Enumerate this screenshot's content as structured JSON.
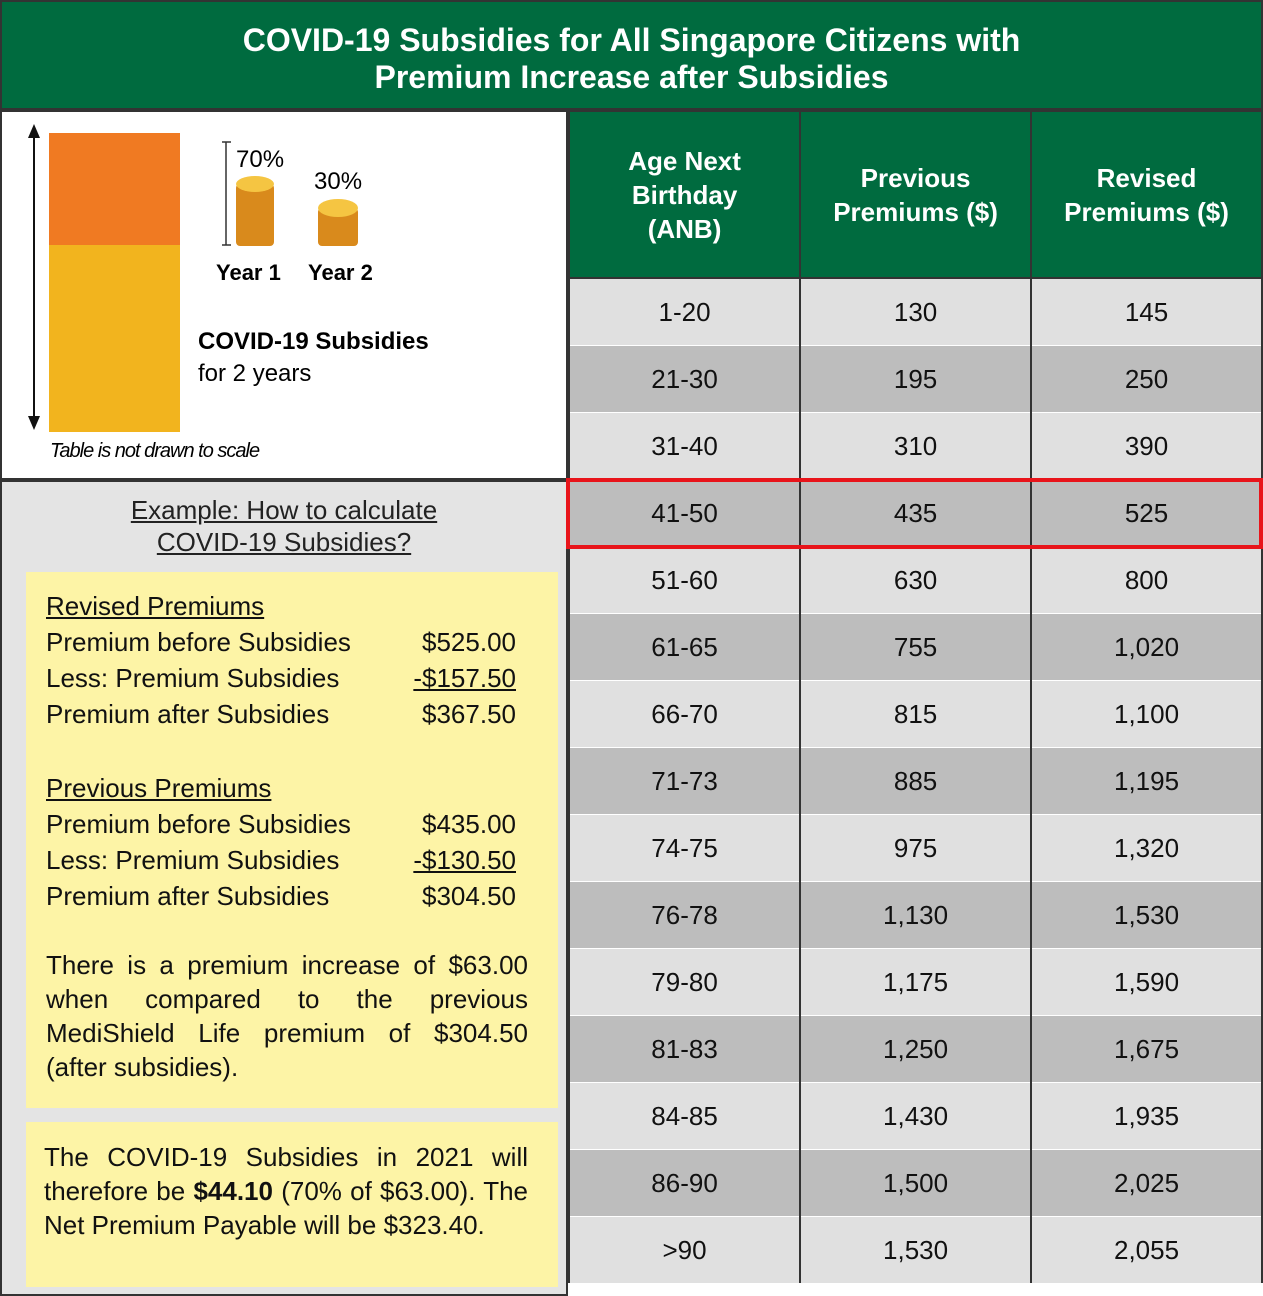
{
  "header": {
    "title_lines": [
      "COVID-19 Subsidies for All Singapore Citizens with",
      "Premium Increase after Subsidies"
    ]
  },
  "legend": {
    "year1_pct": "70%",
    "year2_pct": "30%",
    "year1": "Year 1",
    "year2": "Year 2",
    "label_bold": "COVID-19 Subsidies",
    "label": "for 2 years",
    "note": "Table is not drawn to scale"
  },
  "example": {
    "title_lines": [
      "Example: How to calculate",
      "COVID-19 Subsidies?"
    ],
    "revised": {
      "heading": "Revised Premiums",
      "rows": [
        [
          "Premium before Subsidies",
          "$525.00"
        ],
        [
          "Less: Premium Subsidies",
          "-$157.50"
        ],
        [
          "Premium after Subsidies",
          "$367.50"
        ]
      ]
    },
    "previous": {
      "heading": "Previous Premiums",
      "rows": [
        [
          "Premium before Subsidies",
          "$435.00"
        ],
        [
          "Less: Premium Subsidies",
          "-$130.50"
        ],
        [
          "Premium after Subsidies",
          "$304.50"
        ]
      ]
    },
    "increase_text": "There is a premium increase of $63.00 when compared to the previous MediShield Life premium of $304.50 (after subsidies).",
    "conclusion": [
      "The COVID-19 Subsidies in 2021 will therefore be ",
      "$44.10",
      " (70% of $63.00). The Net Premium Payable will be $323.40."
    ]
  },
  "table": {
    "columns": [
      [
        "Age Next",
        "Birthday",
        "(ANB)"
      ],
      [
        "Previous",
        "Premiums ($)"
      ],
      [
        "Revised",
        "Premiums ($)"
      ]
    ],
    "rows": [
      [
        "1-20",
        "130",
        "145"
      ],
      [
        "21-30",
        "195",
        "250"
      ],
      [
        "31-40",
        "310",
        "390"
      ],
      [
        "41-50",
        "435",
        "525"
      ],
      [
        "51-60",
        "630",
        "800"
      ],
      [
        "61-65",
        "755",
        "1,020"
      ],
      [
        "66-70",
        "815",
        "1,100"
      ],
      [
        "71-73",
        "885",
        "1,195"
      ],
      [
        "74-75",
        "975",
        "1,320"
      ],
      [
        "76-78",
        "1,130",
        "1,530"
      ],
      [
        "79-80",
        "1,175",
        "1,590"
      ],
      [
        "81-83",
        "1,250",
        "1,675"
      ],
      [
        "84-85",
        "1,430",
        "1,935"
      ],
      [
        "86-90",
        "1,500",
        "2,025"
      ],
      [
        ">90",
        "1,530",
        "2,055"
      ]
    ],
    "highlight_row": 3
  }
}
